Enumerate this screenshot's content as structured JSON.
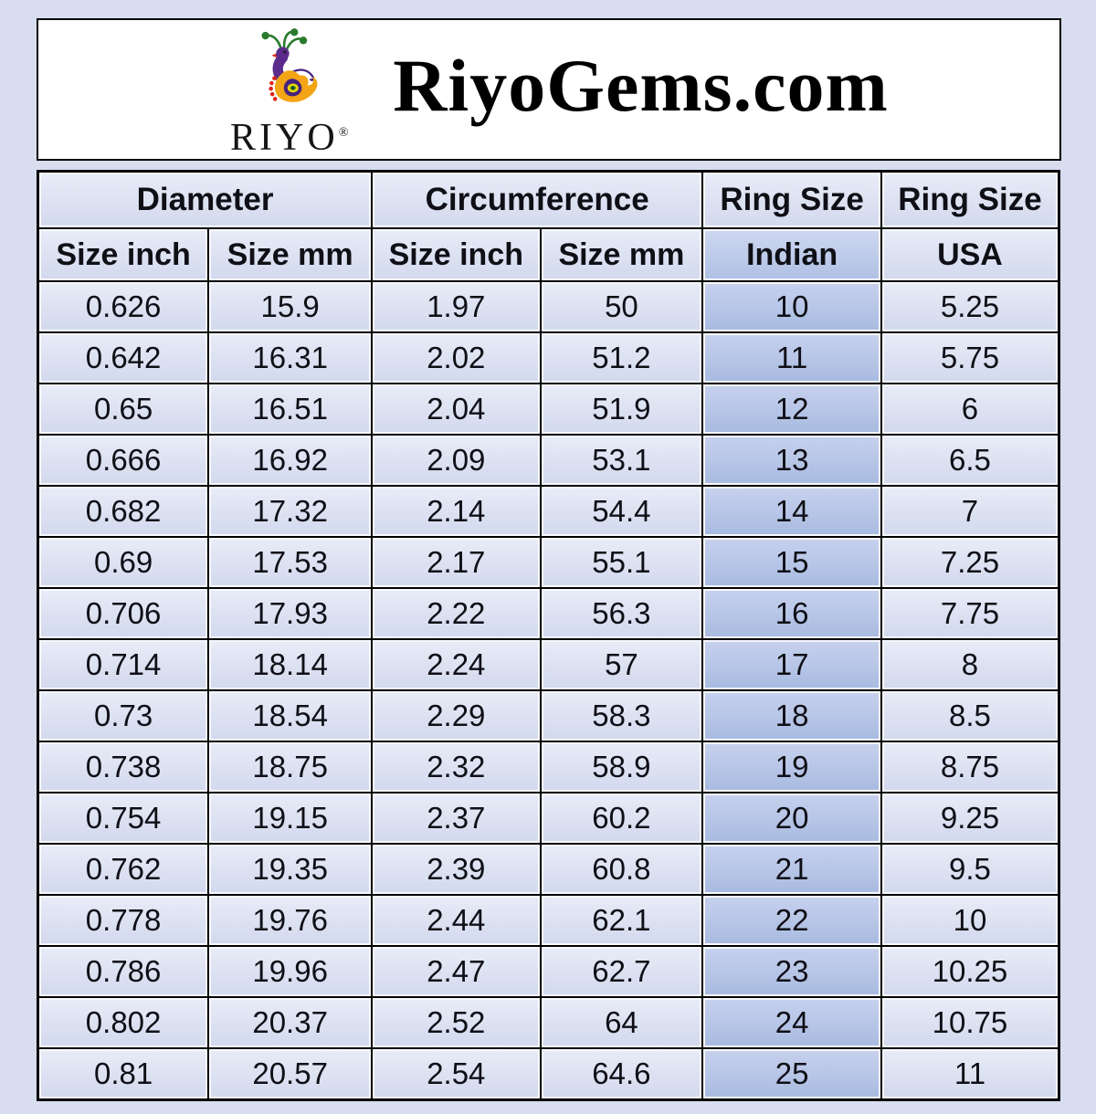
{
  "page": {
    "background": "#d8def0"
  },
  "header": {
    "logo_text": "RIYO",
    "registered_mark": "®",
    "title": "RiyoGems.com"
  },
  "chart_data": {
    "type": "table",
    "title": "RiyoGems.com",
    "column_groups": [
      {
        "label": "Diameter",
        "span": 2
      },
      {
        "label": "Circumference",
        "span": 2
      },
      {
        "label": "Ring Size",
        "span": 1
      },
      {
        "label": "Ring Size",
        "span": 1
      }
    ],
    "columns": [
      "Size inch",
      "Size mm",
      "Size inch",
      "Size mm",
      "Indian",
      "USA"
    ],
    "highlighted_column": "Indian",
    "rows": [
      [
        "0.626",
        "15.9",
        "1.97",
        "50",
        "10",
        "5.25"
      ],
      [
        "0.642",
        "16.31",
        "2.02",
        "51.2",
        "11",
        "5.75"
      ],
      [
        "0.65",
        "16.51",
        "2.04",
        "51.9",
        "12",
        "6"
      ],
      [
        "0.666",
        "16.92",
        "2.09",
        "53.1",
        "13",
        "6.5"
      ],
      [
        "0.682",
        "17.32",
        "2.14",
        "54.4",
        "14",
        "7"
      ],
      [
        "0.69",
        "17.53",
        "2.17",
        "55.1",
        "15",
        "7.25"
      ],
      [
        "0.706",
        "17.93",
        "2.22",
        "56.3",
        "16",
        "7.75"
      ],
      [
        "0.714",
        "18.14",
        "2.24",
        "57",
        "17",
        "8"
      ],
      [
        "0.73",
        "18.54",
        "2.29",
        "58.3",
        "18",
        "8.5"
      ],
      [
        "0.738",
        "18.75",
        "2.32",
        "58.9",
        "19",
        "8.75"
      ],
      [
        "0.754",
        "19.15",
        "2.37",
        "60.2",
        "20",
        "9.25"
      ],
      [
        "0.762",
        "19.35",
        "2.39",
        "60.8",
        "21",
        "9.5"
      ],
      [
        "0.778",
        "19.76",
        "2.44",
        "62.1",
        "22",
        "10"
      ],
      [
        "0.786",
        "19.96",
        "2.47",
        "62.7",
        "23",
        "10.25"
      ],
      [
        "0.802",
        "20.37",
        "2.52",
        "64",
        "24",
        "10.75"
      ],
      [
        "0.81",
        "20.57",
        "2.54",
        "64.6",
        "25",
        "11"
      ]
    ]
  },
  "colors": {
    "page_background": "#d8def0",
    "header_box_background": "#ffffff",
    "cell_background": "#dde2f2",
    "indian_column_background": "#b8c6e7",
    "table_border": "#000000",
    "text": "#0f0f16",
    "logo_purple": "#5b2b8c",
    "logo_orange": "#f4a515",
    "logo_green": "#2a7a2e",
    "logo_red": "#e02318",
    "logo_yellow": "#e8d800"
  }
}
